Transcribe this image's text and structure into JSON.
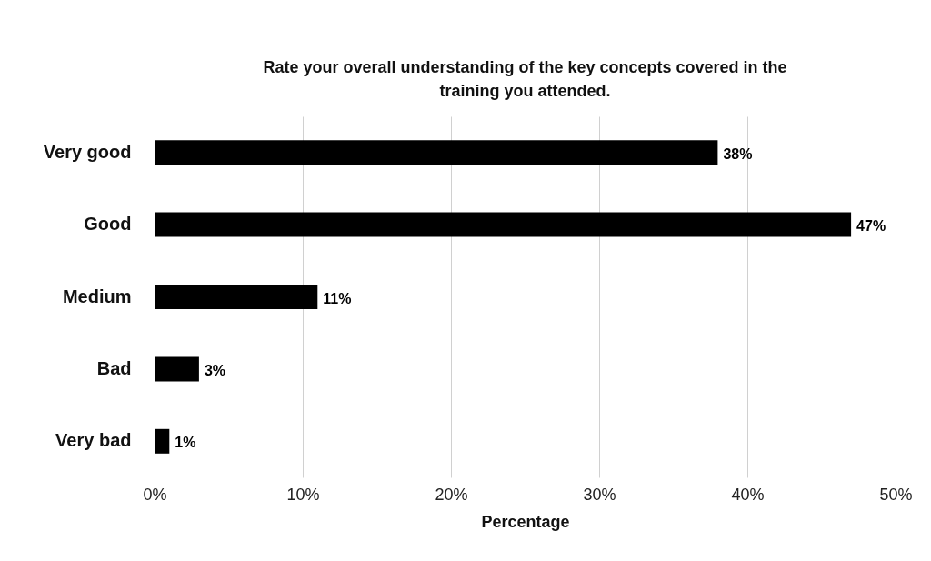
{
  "chart_data": {
    "type": "bar",
    "orientation": "horizontal",
    "title": "Rate your overall understanding of the key concepts covered in the training you attended.",
    "xlabel": "Percentage",
    "categories": [
      "Very good",
      "Good",
      "Medium",
      "Bad",
      "Very bad"
    ],
    "values": [
      38,
      47,
      11,
      3,
      1
    ],
    "color": "#000000",
    "value_labels": [
      "38%",
      "47%",
      "11%",
      "3%",
      "1%"
    ],
    "xlim": [
      0,
      50
    ],
    "xticks": [
      {
        "value": 0,
        "label": "0%"
      },
      {
        "value": 10,
        "label": "10%"
      },
      {
        "value": 20,
        "label": "20%"
      },
      {
        "value": 30,
        "label": "30%"
      },
      {
        "value": 40,
        "label": "40%"
      },
      {
        "value": 50,
        "label": "50%"
      }
    ],
    "grid": "x"
  }
}
